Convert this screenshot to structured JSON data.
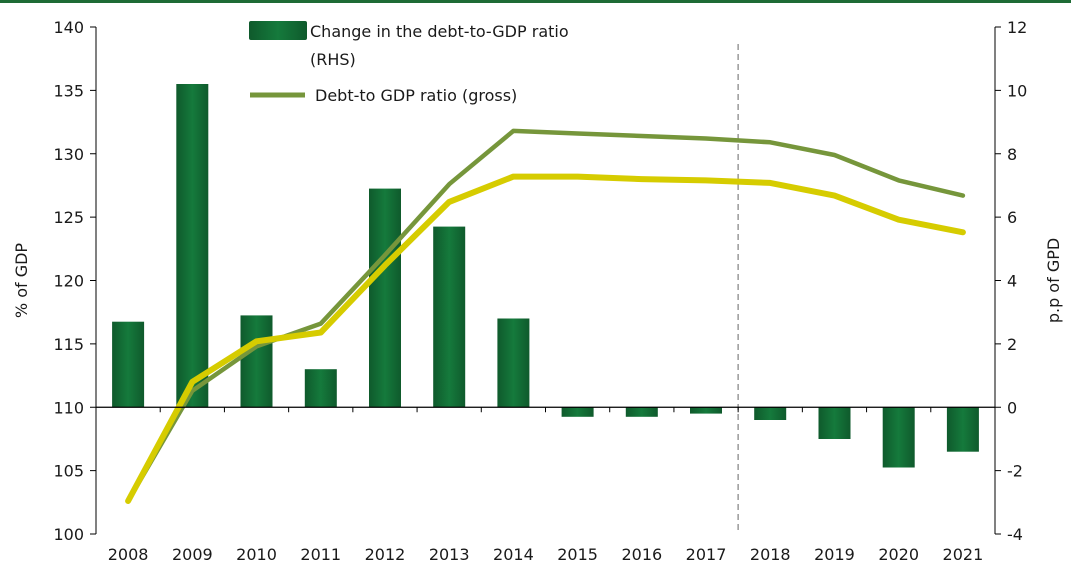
{
  "colors": {
    "top_bar": "#1e6b35",
    "bar_fill": "#157a3c",
    "bar_fill_dark": "#0f5a2c",
    "gross_line": "#76963b",
    "other_line": "#d6cc00",
    "axis": "#000000",
    "divider": "#999999"
  },
  "chart_data": {
    "type": "bar+line",
    "categories": [
      "2008",
      "2009",
      "2010",
      "2011",
      "2012",
      "2013",
      "2014",
      "2015",
      "2016",
      "2017",
      "2018",
      "2019",
      "2020",
      "2021"
    ],
    "ylabel_left": "% of GDP",
    "ylabel_right": "p.p of GPD",
    "ylim_left": [
      100,
      140
    ],
    "ylim_right": [
      -4,
      12
    ],
    "yticks_left": [
      "100",
      "105",
      "110",
      "115",
      "120",
      "125",
      "130",
      "135",
      "140"
    ],
    "yticks_right": [
      "-4",
      "-2",
      "0",
      "2",
      "4",
      "6",
      "8",
      "10",
      "12"
    ],
    "forecast_divider_between": [
      "2017",
      "2018"
    ],
    "legend": {
      "bar_label_line1": "Change in the debt-to-GDP ratio",
      "bar_label_line2": "(RHS)",
      "line_label": "Debt-to GDP ratio (gross)"
    },
    "series": [
      {
        "name": "Change in the debt-to-GDP ratio (RHS)",
        "type": "bar",
        "axis": "right",
        "values": [
          2.7,
          10.2,
          2.9,
          1.2,
          6.9,
          5.7,
          2.8,
          -0.3,
          -0.3,
          -0.2,
          -0.4,
          -1.0,
          -1.9,
          -1.4
        ]
      },
      {
        "name": "Debt-to GDP ratio (gross)",
        "type": "line",
        "axis": "left",
        "values": [
          102.6,
          111.3,
          114.8,
          116.6,
          122.0,
          127.6,
          131.8,
          131.6,
          131.4,
          131.2,
          130.9,
          129.9,
          127.9,
          126.7
        ]
      },
      {
        "type": "line",
        "axis": "left",
        "values": [
          102.6,
          112.0,
          115.2,
          115.9,
          121.2,
          126.2,
          128.2,
          128.2,
          128.0,
          127.9,
          127.7,
          126.7,
          124.8,
          123.8
        ]
      }
    ]
  }
}
